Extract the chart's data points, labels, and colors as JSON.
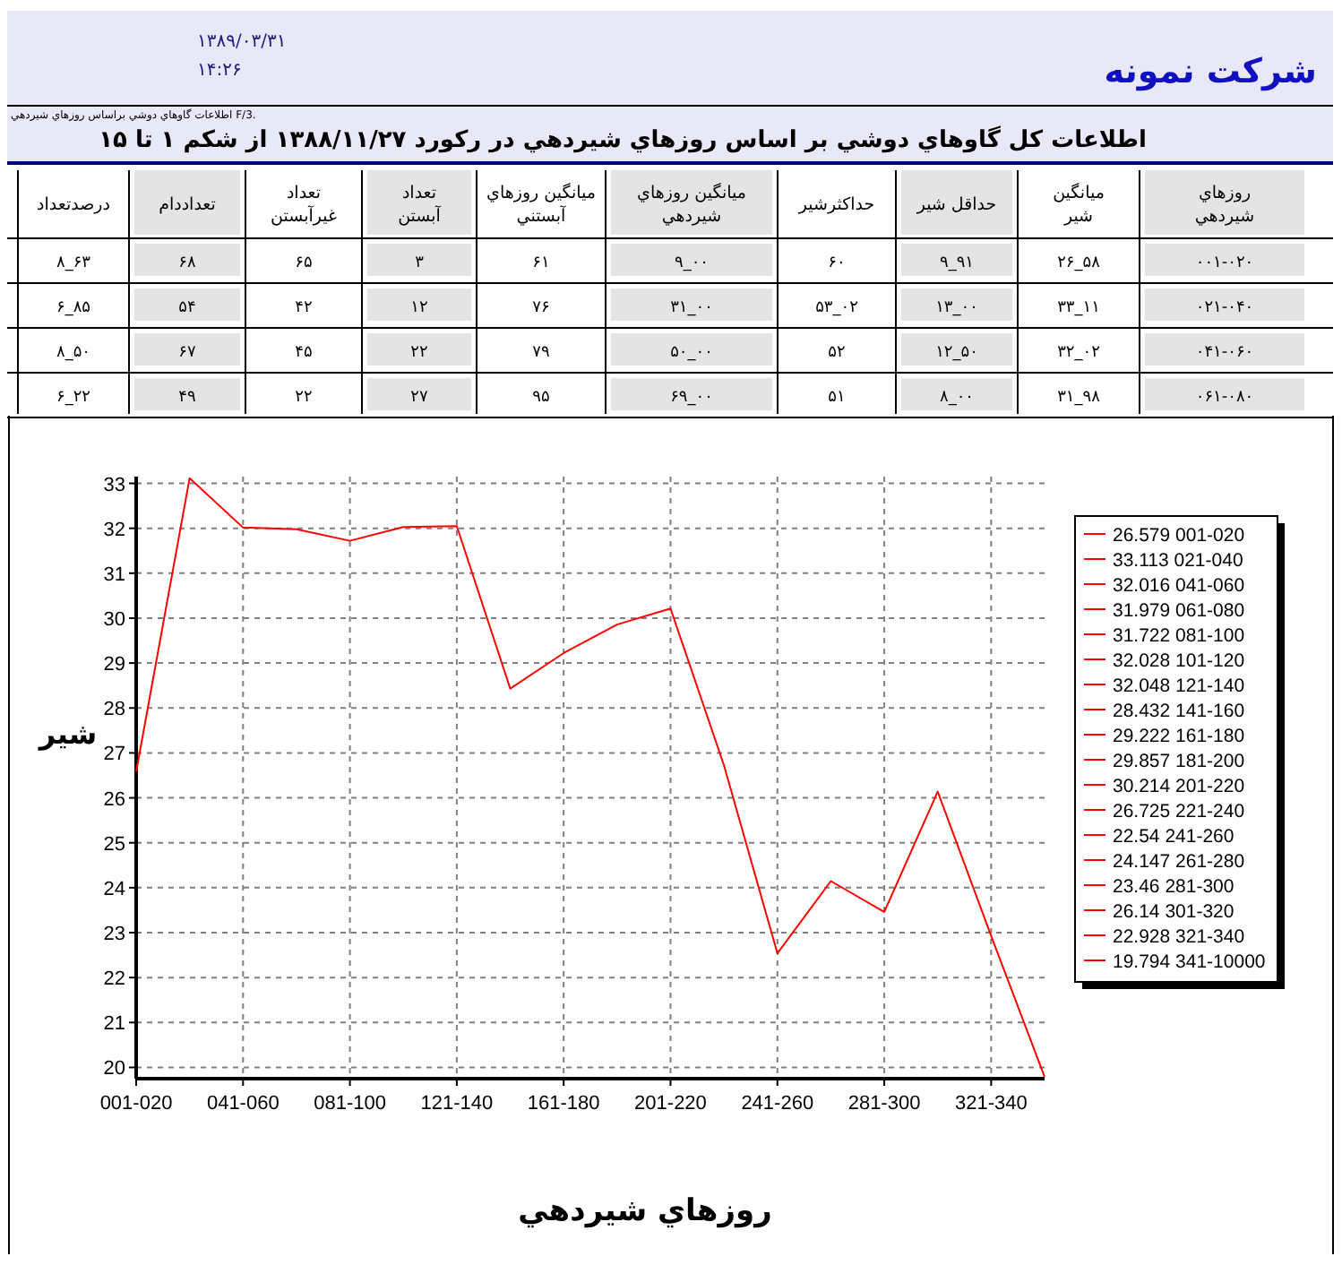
{
  "chart_data": [
    {
      "type": "other",
      "title": "شرکت نمونه",
      "subtitle": "اطلاعات كل گاوهاي دوشي بر اساس روزهاي شيردهي در ركورد ۱۳۸۸/۱۱/۲۷ از شكم ۱ تا ۱۵",
      "annotations": [
        "۱۳۸۹/۰۳/۳۱",
        "۱۴:۲۶",
        "اطلاعات گاوهاي دوشي براساس روزهاي شيردهي F/3."
      ],
      "categories": [
        "درصدتعداد",
        "تعداددام",
        "تعداد غيرآبستن",
        "تعداد آبستن",
        "ميانگين روزهاي آبستني",
        "ميانگين روزهاي شيردهي",
        "حداكثرشير",
        "حداقل شير",
        "ميانگين شير",
        "روزهاي شيردهي"
      ],
      "cell_labels": [
        [
          "۸_۶۳",
          "۶۸",
          "۶۵",
          "۳",
          "۶۱",
          "۹_۰۰",
          "۶۰",
          "۹_۹۱",
          "۲۶_۵۸",
          "۰۰۱-۰۲۰"
        ],
        [
          "۶_۸۵",
          "۵۴",
          "۴۲",
          "۱۲",
          "۷۶",
          "۳۱_۰۰",
          "۵۳_۰۲",
          "۱۳_۰۰",
          "۳۳_۱۱",
          "۰۲۱-۰۴۰"
        ],
        [
          "۸_۵۰",
          "۶۷",
          "۴۵",
          "۲۲",
          "۷۹",
          "۵۰_۰۰",
          "۵۲",
          "۱۲_۵۰",
          "۳۲_۰۲",
          "۰۴۱-۰۶۰"
        ],
        [
          "۶_۲۲",
          "۴۹",
          "۲۲",
          "۲۷",
          "۹۵",
          "۶۹_۰۰",
          "۵۱",
          "۸_۰۰",
          "۳۱_۹۸",
          "۰۶۱-۰۸۰"
        ]
      ]
    },
    {
      "type": "line",
      "xlabel": "روزهاي شيردهي",
      "ylabel": "شير",
      "categories": [
        "001-020",
        null,
        "041-060",
        null,
        "081-100",
        null,
        "121-140",
        null,
        "161-180",
        null,
        "201-220",
        null,
        "241-260",
        null,
        "281-300",
        null,
        "321-340",
        null
      ],
      "series": [
        {
          "color": "#ff0000",
          "values": [
            26.579,
            33.113,
            32.016,
            31.979,
            31.722,
            32.028,
            32.048,
            28.432,
            29.222,
            29.857,
            30.214,
            26.725,
            22.54,
            24.147,
            23.46,
            26.14,
            22.928,
            19.794
          ]
        }
      ],
      "ylim": [
        19.75,
        33.15
      ],
      "yticks": [
        20,
        21,
        22,
        23,
        24,
        25,
        26,
        27,
        28,
        29,
        30,
        31,
        32,
        33
      ],
      "grid": true
    },
    {
      "type": "other",
      "color": "#ff0000",
      "annotations": [
        "26.579 001-020",
        "33.113 021-040",
        "32.016 041-060",
        "31.979 061-080",
        "31.722 081-100",
        "32.028 101-120",
        "32.048 121-140",
        "28.432 141-160",
        "29.222 161-180",
        "29.857 181-200",
        "30.214 201-220",
        "26.725 221-240",
        "22.54 241-260",
        "24.147 261-280",
        "23.46 281-300",
        "26.14 301-320",
        "22.928 321-340",
        "19.794 341-10000"
      ]
    }
  ]
}
